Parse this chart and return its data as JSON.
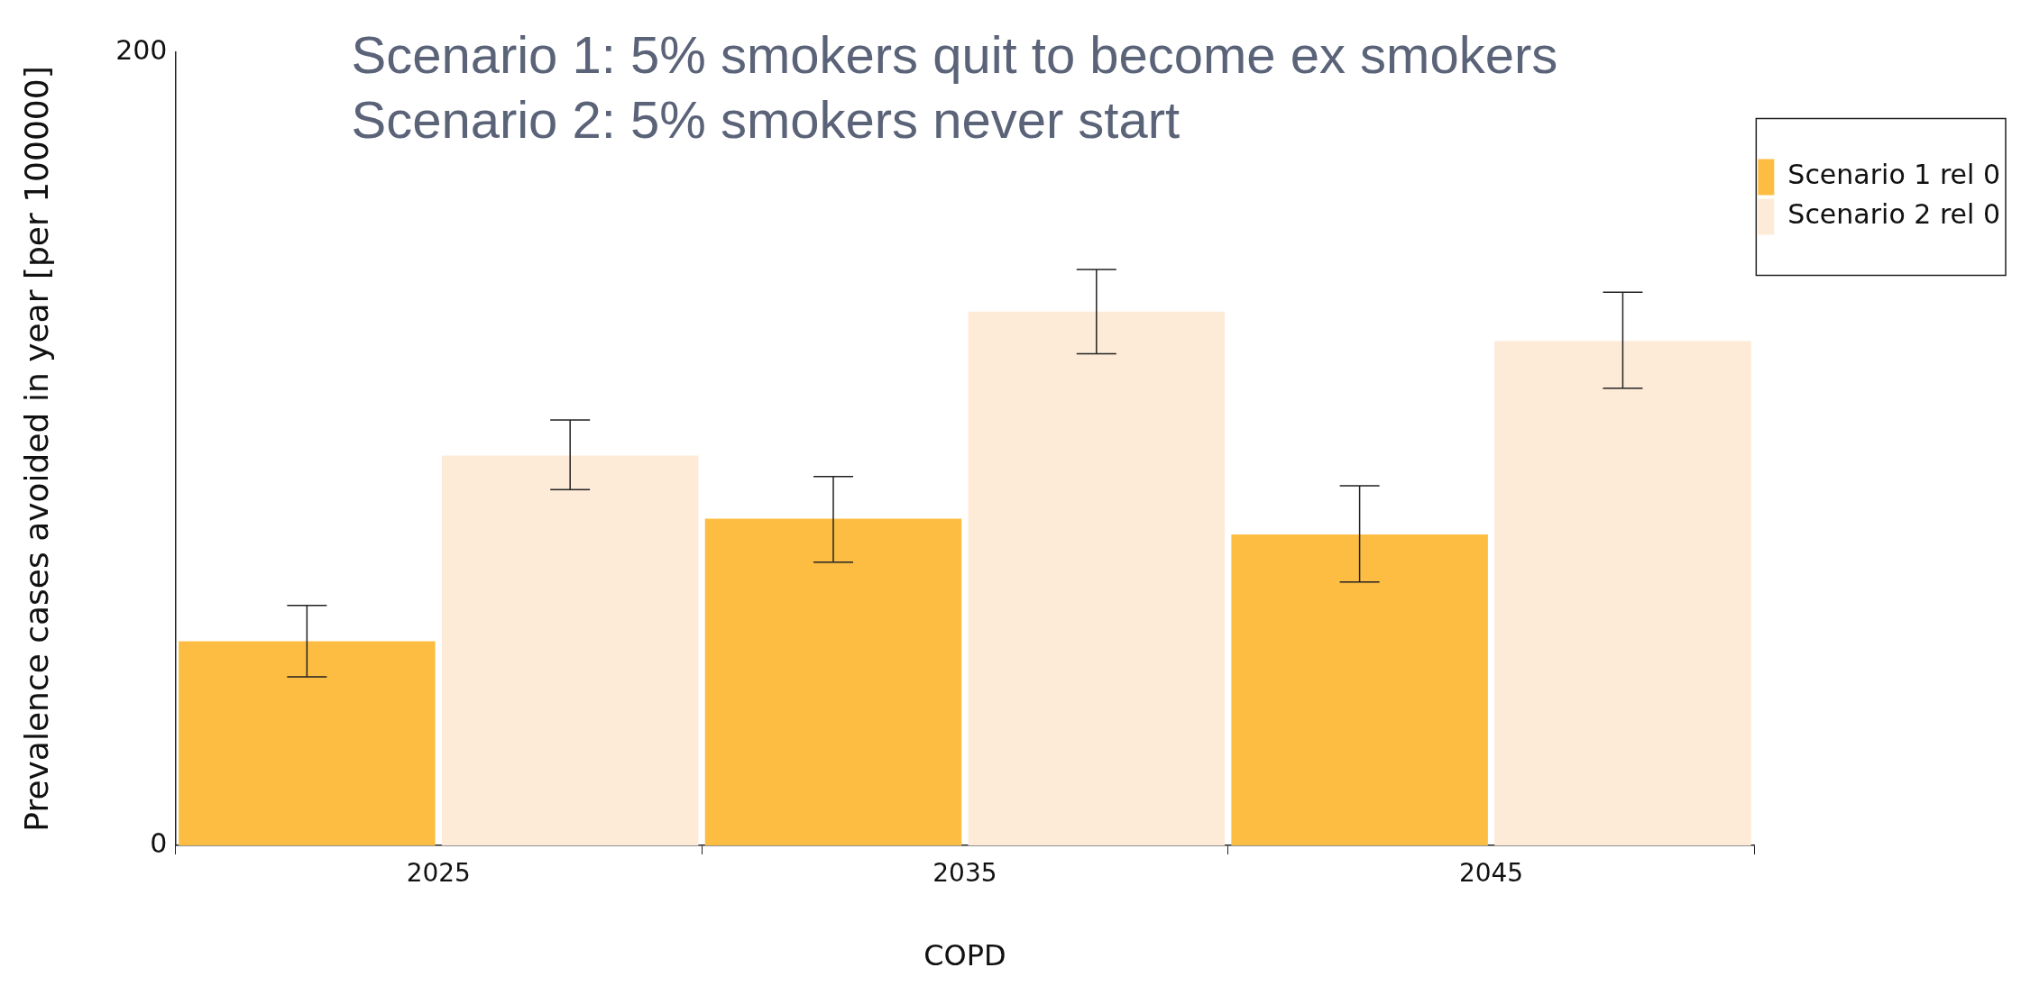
{
  "chart_data": {
    "type": "bar",
    "title": "Scenario 1: 5% smokers quit to become ex smokers",
    "subtitle": "Scenario 2: 5% smokers never start",
    "xlabel": "COPD",
    "ylabel": "Prevalence cases avoided in year [per 100000]",
    "categories": [
      "2025",
      "2035",
      "2045"
    ],
    "series": [
      {
        "name": "Scenario 1 rel 0",
        "color": "#fdbd42",
        "values": [
          51.5,
          82.4,
          78.4
        ],
        "errors": [
          [
            42.5,
            60.5
          ],
          [
            71.4,
            93
          ],
          [
            66.4,
            90.7
          ]
        ]
      },
      {
        "name": "Scenario 2 rel 0",
        "color": "#fdebd8",
        "values": [
          98.3,
          134.6,
          127.2
        ],
        "errors": [
          [
            89.7,
            107.3
          ],
          [
            124,
            145.2
          ],
          [
            115.3,
            139.5
          ]
        ]
      }
    ],
    "ylim": [
      0,
      200
    ],
    "yticks": [
      0,
      200
    ],
    "grid": false,
    "legend": "right"
  }
}
